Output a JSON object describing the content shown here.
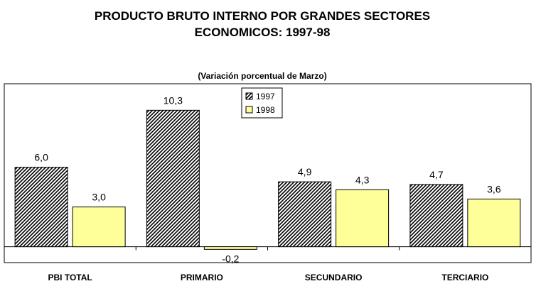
{
  "title_line1": "PRODUCTO BRUTO INTERNO POR GRANDES SECTORES",
  "title_line2": "ECONOMICOS: 1997-98",
  "subtitle": "(Variación porcentual de Marzo)",
  "colors": {
    "s1997_fill": "#ffffff",
    "s1997_hatch": "#000000",
    "s1998_fill": "#ffff99"
  },
  "chart_data": {
    "type": "bar",
    "title": "PRODUCTO BRUTO INTERNO POR GRANDES SECTORES ECONOMICOS: 1997-98",
    "subtitle": "(Variación porcentual de Marzo)",
    "categories": [
      "PBI TOTAL",
      "PRIMARIO",
      "SECUNDARIO",
      "TERCIARIO"
    ],
    "series": [
      {
        "name": "1997",
        "values": [
          6.0,
          10.3,
          4.9,
          4.7
        ],
        "labels": [
          "6,0",
          "10,3",
          "4,9",
          "4,7"
        ]
      },
      {
        "name": "1998",
        "values": [
          3.0,
          -0.2,
          4.3,
          3.6
        ],
        "labels": [
          "3,0",
          "-0,2",
          "4,3",
          "3,6"
        ]
      }
    ],
    "ylim": [
      -1.2,
      12.3
    ],
    "xlabel": "",
    "ylabel": "",
    "grid": false,
    "legend": "top-center"
  }
}
